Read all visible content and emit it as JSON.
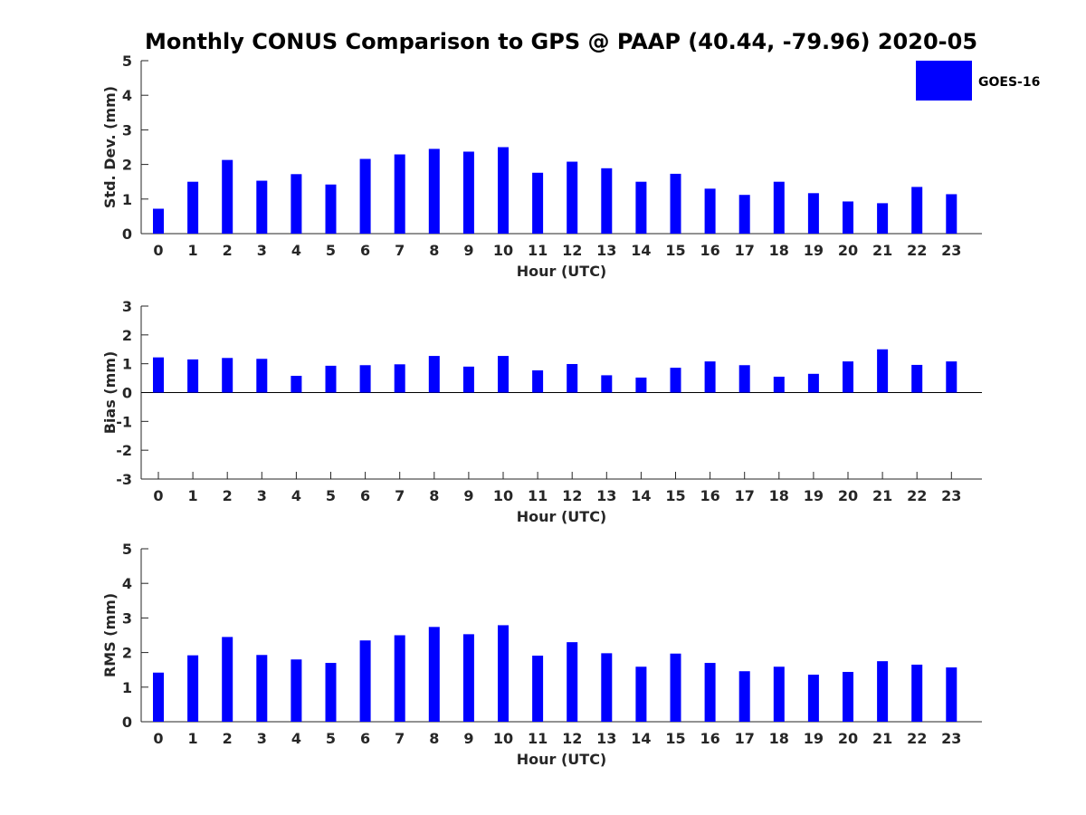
{
  "title": "Monthly CONUS Comparison to GPS @ PAAP (40.44, -79.96) 2020-05",
  "legend": {
    "label": "GOES-16",
    "color": "#0000ff"
  },
  "chart_data": [
    {
      "type": "bar",
      "title": "Monthly CONUS Comparison to GPS @ PAAP (40.44, -79.96) 2020-05",
      "xlabel": "Hour (UTC)",
      "ylabel": "Std. Dev. (mm)",
      "categories": [
        "0",
        "1",
        "2",
        "3",
        "4",
        "5",
        "6",
        "7",
        "8",
        "9",
        "10",
        "11",
        "12",
        "13",
        "14",
        "15",
        "16",
        "17",
        "18",
        "19",
        "20",
        "21",
        "22",
        "23"
      ],
      "series": [
        {
          "name": "GOES-16",
          "color": "#0000ff",
          "values": [
            0.72,
            1.5,
            2.13,
            1.53,
            1.72,
            1.42,
            2.16,
            2.29,
            2.45,
            2.37,
            2.5,
            1.76,
            2.08,
            1.89,
            1.5,
            1.73,
            1.3,
            1.12,
            1.5,
            1.17,
            0.93,
            0.88,
            1.35,
            1.14
          ]
        }
      ],
      "ylim": [
        0,
        5
      ],
      "yticks": [
        "0",
        "1",
        "2",
        "3",
        "4",
        "5"
      ],
      "legend_position": "top-right"
    },
    {
      "type": "bar",
      "xlabel": "Hour (UTC)",
      "ylabel": "Bias (mm)",
      "categories": [
        "0",
        "1",
        "2",
        "3",
        "4",
        "5",
        "6",
        "7",
        "8",
        "9",
        "10",
        "11",
        "12",
        "13",
        "14",
        "15",
        "16",
        "17",
        "18",
        "19",
        "20",
        "21",
        "22",
        "23"
      ],
      "series": [
        {
          "name": "GOES-16",
          "color": "#0000ff",
          "values": [
            1.22,
            1.15,
            1.2,
            1.17,
            0.58,
            0.93,
            0.95,
            0.98,
            1.27,
            0.9,
            1.27,
            0.77,
            0.99,
            0.6,
            0.52,
            0.86,
            1.08,
            0.95,
            0.55,
            0.65,
            1.08,
            1.5,
            0.96,
            1.08
          ]
        }
      ],
      "ylim": [
        -3,
        3
      ],
      "yticks": [
        "-3",
        "-2",
        "-1",
        "0",
        "1",
        "2",
        "3"
      ],
      "zero_line": true
    },
    {
      "type": "bar",
      "xlabel": "Hour (UTC)",
      "ylabel": "RMS (mm)",
      "categories": [
        "0",
        "1",
        "2",
        "3",
        "4",
        "5",
        "6",
        "7",
        "8",
        "9",
        "10",
        "11",
        "12",
        "13",
        "14",
        "15",
        "16",
        "17",
        "18",
        "19",
        "20",
        "21",
        "22",
        "23"
      ],
      "series": [
        {
          "name": "GOES-16",
          "color": "#0000ff",
          "values": [
            1.42,
            1.92,
            2.45,
            1.93,
            1.8,
            1.7,
            2.35,
            2.5,
            2.74,
            2.53,
            2.79,
            1.91,
            2.3,
            1.98,
            1.59,
            1.97,
            1.7,
            1.46,
            1.59,
            1.36,
            1.44,
            1.75,
            1.65,
            1.57
          ]
        }
      ],
      "ylim": [
        0,
        5
      ],
      "yticks": [
        "0",
        "1",
        "2",
        "3",
        "4",
        "5"
      ]
    }
  ]
}
